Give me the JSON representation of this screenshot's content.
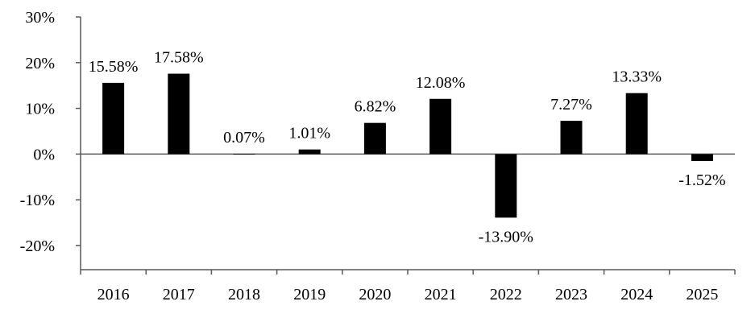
{
  "chart_data": {
    "type": "bar",
    "title": "",
    "xlabel": "",
    "ylabel": "",
    "categories": [
      "2016",
      "2017",
      "2018",
      "2019",
      "2020",
      "2021",
      "2022",
      "2023",
      "2024",
      "2025"
    ],
    "values": [
      15.58,
      17.58,
      0.07,
      1.01,
      6.82,
      12.08,
      -13.9,
      7.27,
      13.33,
      -1.52
    ],
    "data_labels": [
      "15.58%",
      "17.58%",
      "0.07%",
      "1.01%",
      "6.82%",
      "12.08%",
      "-13.90%",
      "7.27%",
      "13.33%",
      "-1.52%"
    ],
    "ylim": [
      -20,
      30
    ],
    "yticks": [
      30,
      20,
      10,
      0,
      -10,
      -20
    ],
    "ytick_labels": [
      "30%",
      "20%",
      "10%",
      "0%",
      "-10%",
      "-20%"
    ],
    "bar_color": "#000000",
    "axis_color": "#595959",
    "grid": false,
    "legend": "none"
  }
}
